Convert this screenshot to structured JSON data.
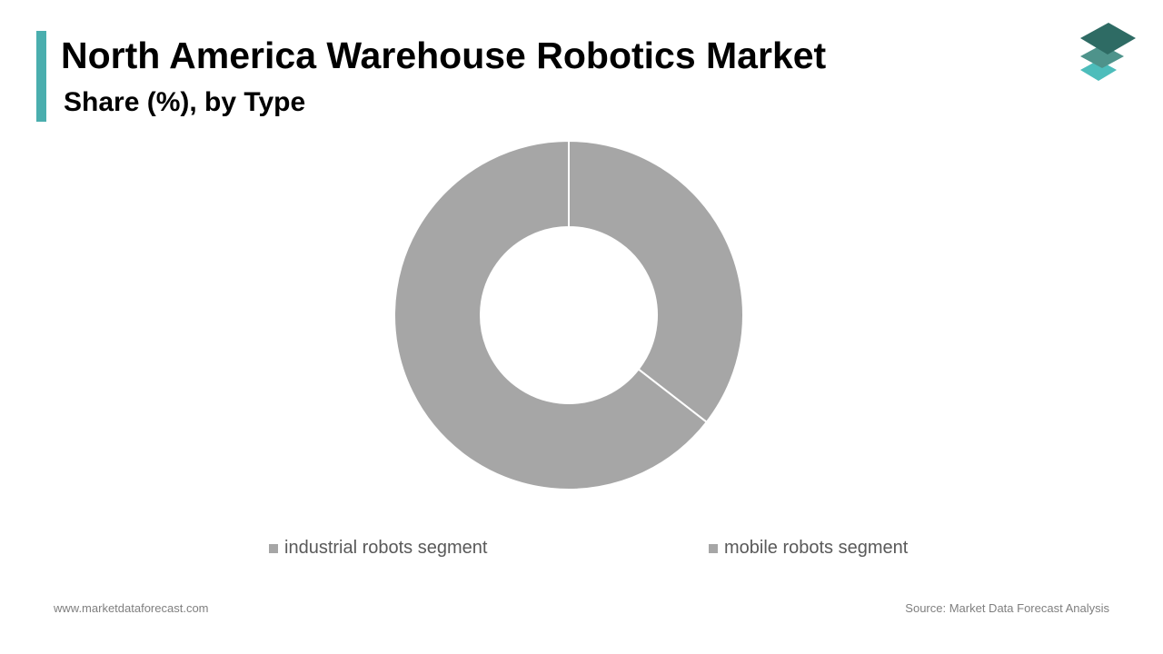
{
  "header": {
    "title": "North America Warehouse Robotics Market",
    "subtitle": "Share (%), by Type"
  },
  "colors": {
    "accent": "#4aaeae",
    "logo_top": "#2e6b64",
    "logo_middle": "#4e938b",
    "logo_bottom": "#4dbdbb",
    "slice_fill": "#a6a6a6",
    "slice_border": "#ffffff"
  },
  "chart_data": {
    "type": "pie",
    "variant": "donut",
    "title": "",
    "categories": [
      "industrial robots segment",
      "mobile robots segment"
    ],
    "values": [
      35.5,
      64.5
    ],
    "legend_position": "bottom"
  },
  "footer": {
    "website": "www.marketdataforecast.com",
    "source": "Source: Market Data Forecast Analysis"
  }
}
